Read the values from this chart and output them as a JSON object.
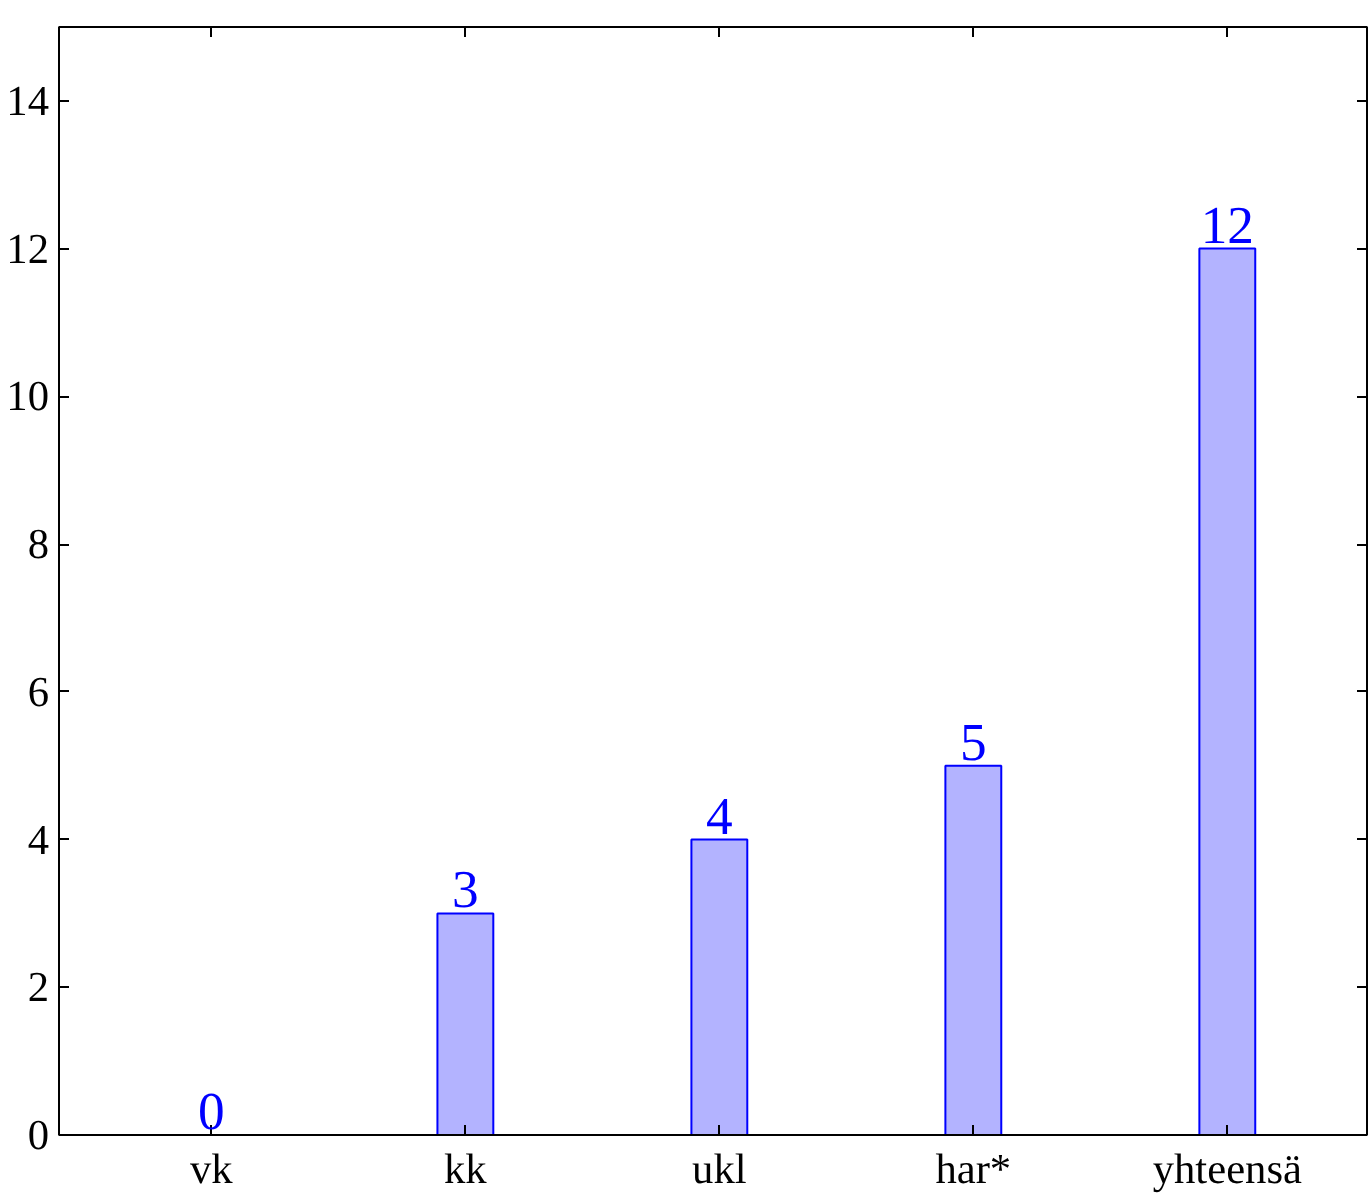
{
  "chart_data": {
    "type": "bar",
    "categories": [
      "vk",
      "kk",
      "ukl",
      "har*",
      "yhteensä"
    ],
    "values": [
      0,
      3,
      4,
      5,
      12
    ],
    "color": "#b3b3ff",
    "ylim": [
      0,
      15
    ],
    "yticks": [
      0,
      2,
      4,
      6,
      8,
      10,
      12,
      14
    ],
    "data_labels": true,
    "grid": false
  }
}
